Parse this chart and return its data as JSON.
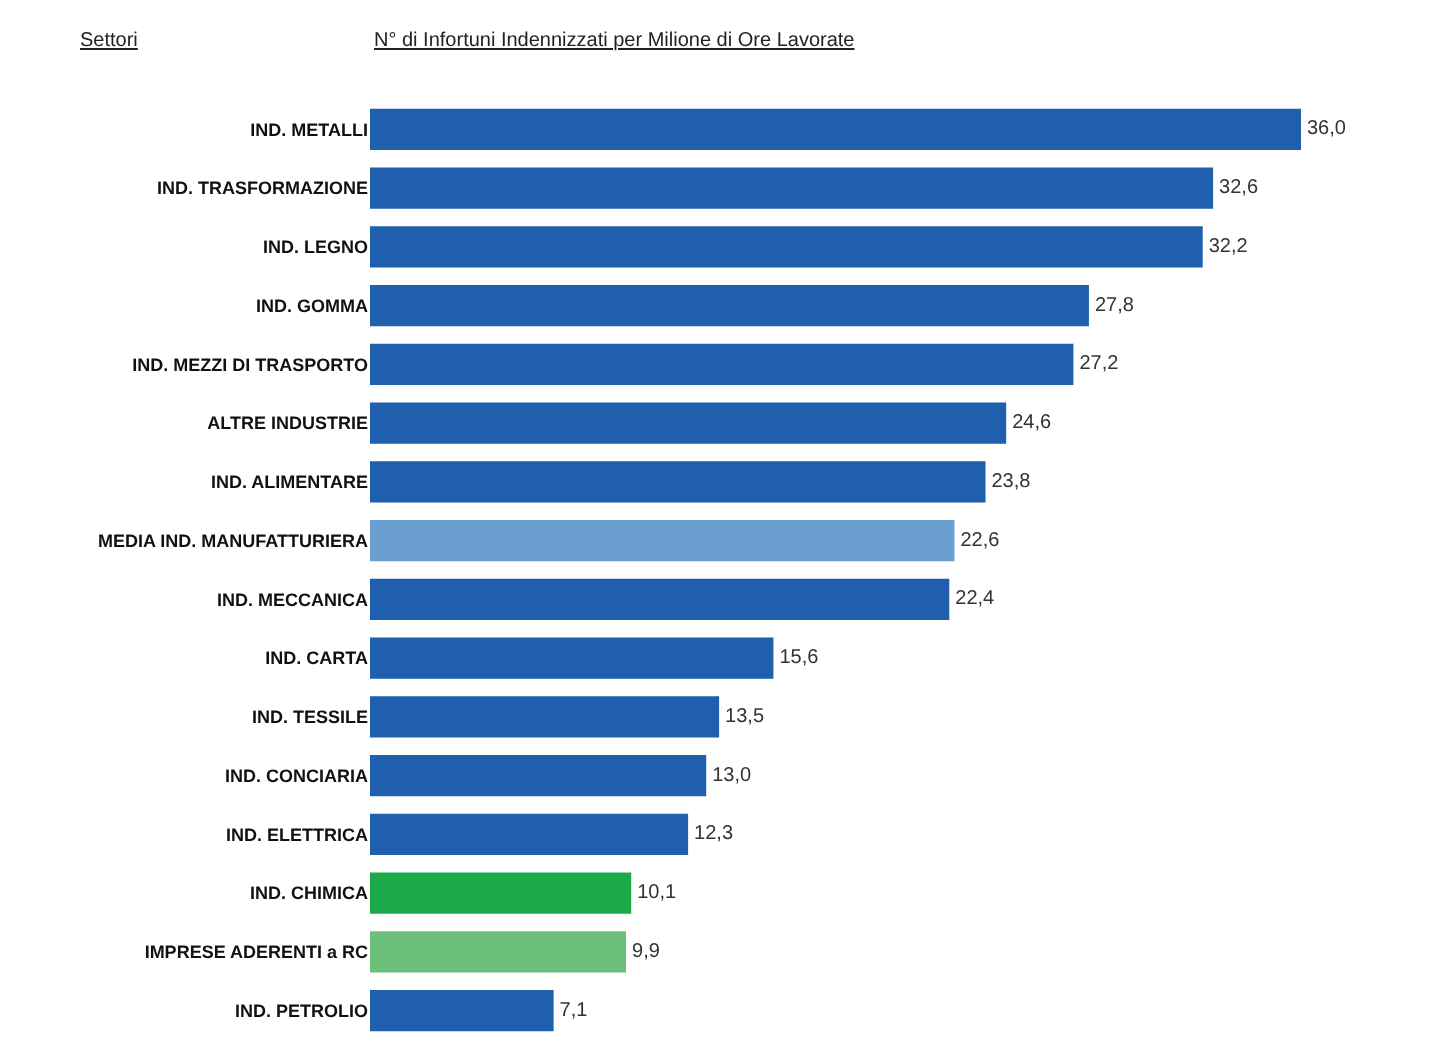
{
  "chart_data": {
    "type": "bar",
    "orientation": "horizontal",
    "ylabel": "Settori",
    "xlabel": "N° di Infortuni Indennizzati per Milione di Ore Lavorate",
    "categories": [
      "IND. METALLI",
      "IND. TRASFORMAZIONE",
      "IND. LEGNO",
      "IND. GOMMA",
      "IND. MEZZI DI TRASPORTO",
      "ALTRE INDUSTRIE",
      "IND. ALIMENTARE",
      "MEDIA IND. MANUFATTURIERA",
      "IND. MECCANICA",
      "IND. CARTA",
      "IND. TESSILE",
      "IND. CONCIARIA",
      "IND. ELETTRICA",
      "IND. CHIMICA",
      "IMPRESE ADERENTI a RC",
      "IND. PETROLIO"
    ],
    "values": [
      36.0,
      32.6,
      32.2,
      27.8,
      27.2,
      24.6,
      23.8,
      22.6,
      22.4,
      15.6,
      13.5,
      13.0,
      12.3,
      10.1,
      9.9,
      7.1
    ],
    "value_labels": [
      "36,0",
      "32,6",
      "32,2",
      "27,8",
      "27,2",
      "24,6",
      "23,8",
      "22,6",
      "22,4",
      "15,6",
      "13,5",
      "13,0",
      "12,3",
      "10,1",
      "9,9",
      "7,1"
    ],
    "colors": [
      "#1f5fad",
      "#1f5fad",
      "#1f5fad",
      "#1f5fad",
      "#1f5fad",
      "#1f5fad",
      "#1f5fad",
      "#6a9fd0",
      "#1f5fad",
      "#1f5fad",
      "#1f5fad",
      "#1f5fad",
      "#1f5fad",
      "#1aaa4a",
      "#6cc07a",
      "#1f5fad"
    ],
    "tick_labels": "y",
    "grid": false,
    "legend": false
  }
}
